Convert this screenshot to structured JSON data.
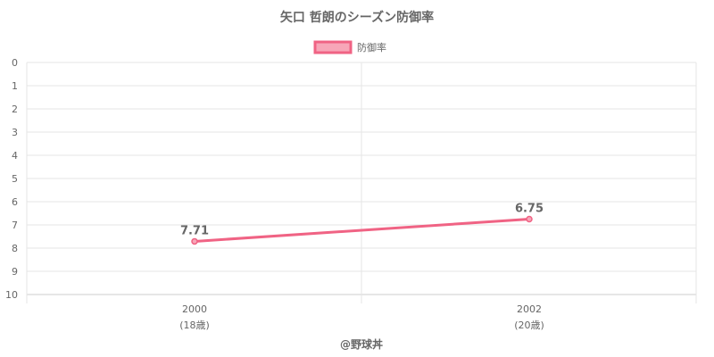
{
  "chart_data": {
    "type": "line",
    "title": "矢口 哲朗のシーズン防御率",
    "categories": [
      "2000",
      "2002"
    ],
    "category_sublabels": [
      "(18歳)",
      "(20歳)"
    ],
    "series": [
      {
        "name": "防御率",
        "values": [
          7.71,
          6.75
        ],
        "color": "#f06384",
        "fill": "#f7a6b8"
      }
    ],
    "ylim": [
      0,
      10
    ],
    "y_reversed": true,
    "yticks": [
      0,
      1,
      2,
      3,
      4,
      5,
      6,
      7,
      8,
      9,
      10
    ],
    "legend_position": "top",
    "grid": true,
    "data_labels": [
      "7.71",
      "6.75"
    ],
    "footer": "@野球丼"
  }
}
